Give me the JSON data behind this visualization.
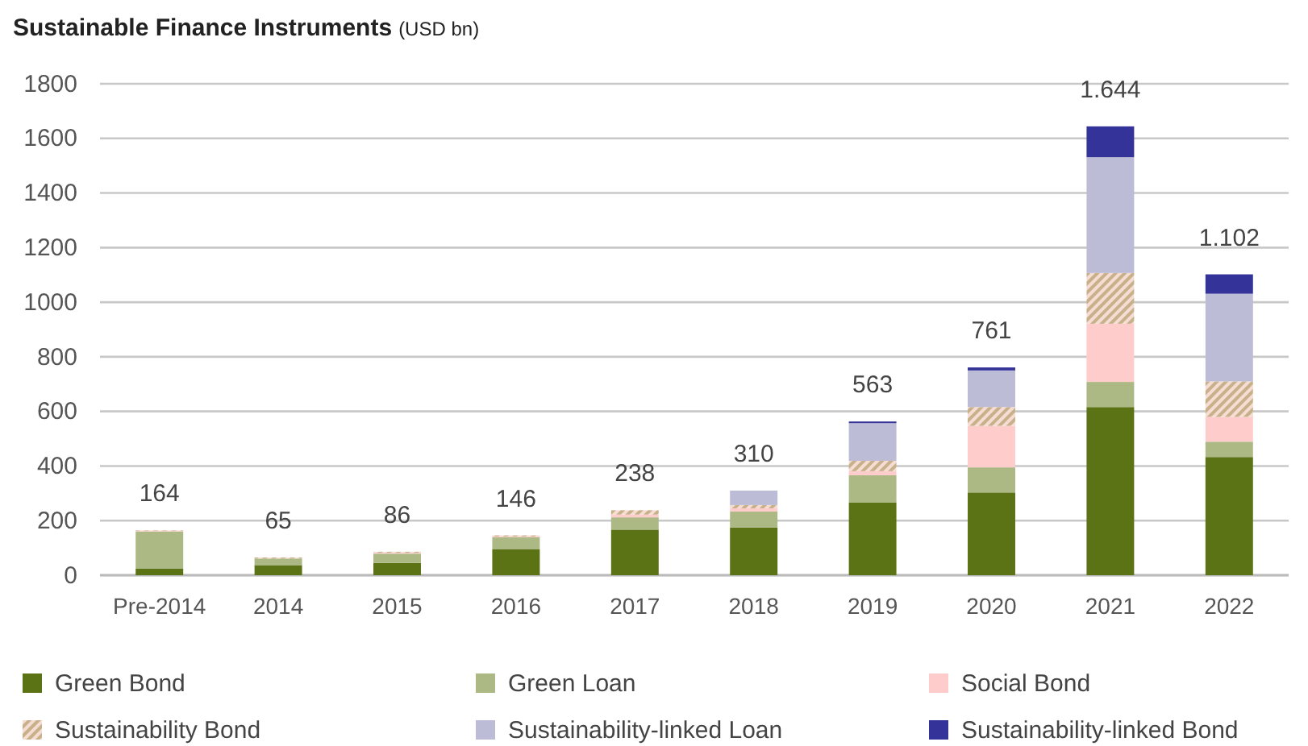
{
  "chart_data": {
    "type": "bar",
    "title": "Sustainable Finance Instruments",
    "subtitle": "(USD bn)",
    "categories": [
      "Pre-2014",
      "2014",
      "2015",
      "2016",
      "2017",
      "2018",
      "2019",
      "2020",
      "2021",
      "2022"
    ],
    "stacked": true,
    "series": [
      {
        "name": "Green Bond",
        "color": "#5b7314",
        "values": [
          25,
          37,
          45,
          96,
          167,
          175,
          267,
          303,
          616,
          433
        ]
      },
      {
        "name": "Green Loan",
        "color": "#adb985",
        "values": [
          135,
          24,
          34,
          43,
          45,
          58,
          99,
          92,
          92,
          56
        ]
      },
      {
        "name": "Social Bond",
        "color": "#ffcccc",
        "values": [
          2,
          null,
          3,
          3,
          10,
          12,
          15,
          152,
          213,
          91
        ]
      },
      {
        "name": "Sustainability Bond",
        "color": "#c8b08a",
        "values": [
          2,
          4,
          4,
          4,
          16,
          12,
          38,
          69,
          186,
          130
        ]
      },
      {
        "name": "Sustainability-linked Loan",
        "color": "#bcbcd6",
        "values": [
          0,
          0,
          0,
          0,
          null,
          53,
          138,
          134,
          424,
          321
        ]
      },
      {
        "name": "Sustainability-linked Bond",
        "color": "#333399",
        "values": [
          0,
          0,
          0,
          0,
          0,
          0,
          6,
          11,
          113,
          71
        ]
      }
    ],
    "totals": [
      "164",
      "65",
      "86",
      "146",
      "238",
      "310",
      "563",
      "761",
      "1.644",
      "1.102"
    ],
    "ylim": [
      0,
      1800
    ],
    "yticks": [
      0,
      200,
      400,
      600,
      800,
      1000,
      1200,
      1400,
      1600,
      1800
    ],
    "grid": "y",
    "legend": "bottom"
  }
}
